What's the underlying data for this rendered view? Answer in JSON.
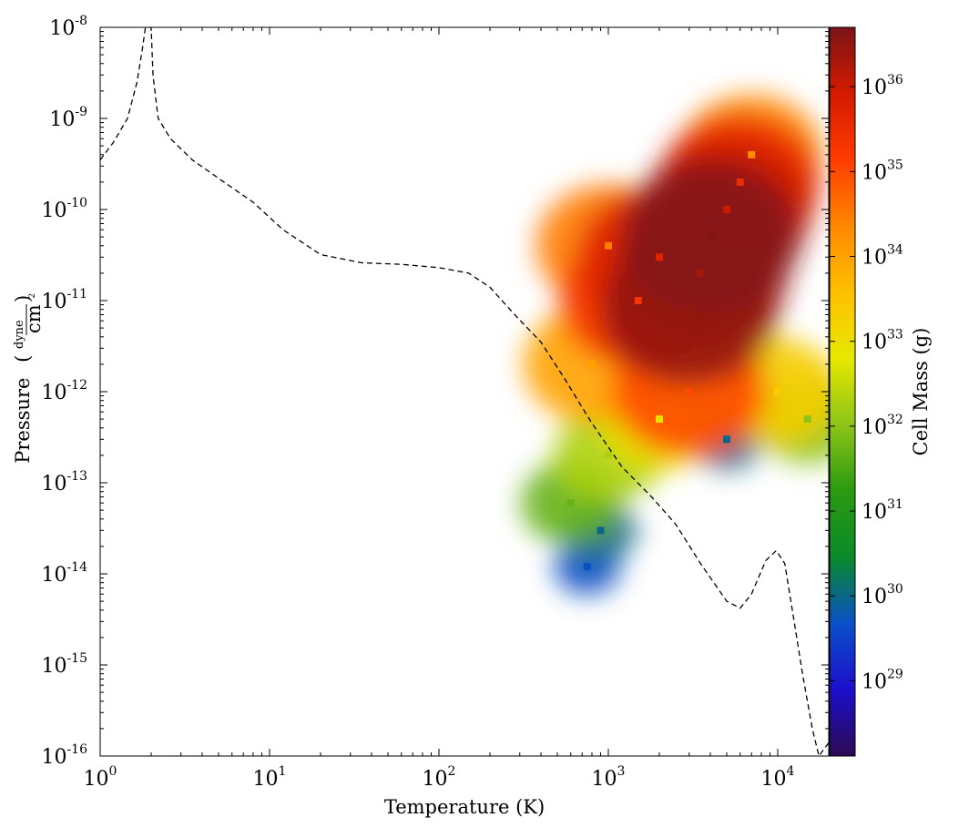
{
  "chart_data": {
    "type": "heatmap",
    "title": "",
    "xlabel": "Temperature  (K)",
    "ylabel_text": "Pressure",
    "ylabel_unit_numerator": "dyne",
    "ylabel_unit_denominator": "cm",
    "ylabel_unit_denominator_exponent": "2",
    "colorbar_label": "Cell Mass  (g)",
    "x_scale": "log",
    "y_scale": "log",
    "xlim": [
      1,
      20000
    ],
    "ylim": [
      1e-16,
      1e-08
    ],
    "x_ticks": [
      {
        "value": 1,
        "base": "10",
        "exp": "0"
      },
      {
        "value": 10,
        "base": "10",
        "exp": "1"
      },
      {
        "value": 100,
        "base": "10",
        "exp": "2"
      },
      {
        "value": 1000,
        "base": "10",
        "exp": "3"
      },
      {
        "value": 10000,
        "base": "10",
        "exp": "4"
      }
    ],
    "y_ticks": [
      {
        "value": 1e-08,
        "base": "10",
        "exp": "-8"
      },
      {
        "value": 1e-09,
        "base": "10",
        "exp": "-9"
      },
      {
        "value": 1e-10,
        "base": "10",
        "exp": "-10"
      },
      {
        "value": 1e-11,
        "base": "10",
        "exp": "-11"
      },
      {
        "value": 1e-12,
        "base": "10",
        "exp": "-12"
      },
      {
        "value": 1e-13,
        "base": "10",
        "exp": "-13"
      },
      {
        "value": 1e-14,
        "base": "10",
        "exp": "-14"
      },
      {
        "value": 1e-15,
        "base": "10",
        "exp": "-15"
      },
      {
        "value": 1e-16,
        "base": "10",
        "exp": "-16"
      }
    ],
    "colorbar_scale": "log",
    "colorbar_range": [
      1.3e+28,
      5e+36
    ],
    "colorbar_ticks": [
      {
        "value": 1e+29,
        "base": "10",
        "exp": "29"
      },
      {
        "value": 1e+30,
        "base": "10",
        "exp": "30"
      },
      {
        "value": 1e+31,
        "base": "10",
        "exp": "31"
      },
      {
        "value": 1e+32,
        "base": "10",
        "exp": "32"
      },
      {
        "value": 1e+33,
        "base": "10",
        "exp": "33"
      },
      {
        "value": 1e+34,
        "base": "10",
        "exp": "34"
      },
      {
        "value": 1e+35,
        "base": "10",
        "exp": "35"
      },
      {
        "value": 1e+36,
        "base": "10",
        "exp": "36"
      }
    ],
    "colormap": [
      "#2d0a52",
      "#1c0ecc",
      "#0a50c8",
      "#0a8a2a",
      "#2a9a10",
      "#8dc418",
      "#e6e800",
      "#ffc000",
      "#ff8800",
      "#ff3c00",
      "#d41a00",
      "#7a1418"
    ],
    "heatmap_description_values": {
      "peak_mass_g": 5e+36,
      "peak_temperature_K": 4000,
      "peak_pressure": 5e-11
    },
    "heatmap_cells": [
      {
        "T": 4000,
        "P": 5e-11,
        "mass": 4e+36
      },
      {
        "T": 3000,
        "P": 8e-12,
        "mass": 3e+36
      },
      {
        "T": 3500,
        "P": 2e-11,
        "mass": 2e+36
      },
      {
        "T": 5000,
        "P": 1e-10,
        "mass": 1e+36
      },
      {
        "T": 2000,
        "P": 3e-11,
        "mass": 5e+35
      },
      {
        "T": 6000,
        "P": 2e-10,
        "mass": 3e+35
      },
      {
        "T": 1500,
        "P": 1e-11,
        "mass": 2e+35
      },
      {
        "T": 3000,
        "P": 1e-12,
        "mass": 1e+35
      },
      {
        "T": 1000,
        "P": 4e-11,
        "mass": 3e+34
      },
      {
        "T": 7000,
        "P": 4e-10,
        "mass": 2e+34
      },
      {
        "T": 800,
        "P": 2e-12,
        "mass": 1e+34
      },
      {
        "T": 2000,
        "P": 5e-13,
        "mass": 1e+33
      },
      {
        "T": 10000,
        "P": 1e-12,
        "mass": 2e+33
      },
      {
        "T": 1000,
        "P": 2e-13,
        "mass": 2e+32
      },
      {
        "T": 15000,
        "P": 5e-13,
        "mass": 1e+32
      },
      {
        "T": 600,
        "P": 6e-14,
        "mass": 5e+31
      },
      {
        "T": 900,
        "P": 3e-14,
        "mass": 1e+30
      },
      {
        "T": 750,
        "P": 1.2e-14,
        "mass": 5e+29
      },
      {
        "T": 5000,
        "P": 3e-13,
        "mass": 1e+30
      }
    ],
    "series": [
      {
        "style": "dashed",
        "color": "#000000",
        "x": [
          1,
          1.2,
          1.45,
          1.65,
          1.78,
          1.85,
          2.0,
          2.05,
          2.2,
          2.6,
          3.5,
          5,
          8,
          12,
          20,
          35,
          60,
          100,
          150,
          200,
          280,
          400,
          550,
          800,
          1200,
          1800,
          2500,
          3500,
          5000,
          6000,
          7000,
          8500,
          9800,
          11000,
          12500,
          14000,
          16000,
          17500,
          20000
        ],
        "y": [
          3.5e-10,
          5.5e-10,
          1e-09,
          2.5e-09,
          6e-09,
          1e-08,
          1e-08,
          3e-09,
          1e-09,
          6e-10,
          3.5e-10,
          2.2e-10,
          1.2e-10,
          6e-11,
          3.2e-11,
          2.6e-11,
          2.5e-11,
          2.3e-11,
          2e-11,
          1.4e-11,
          7e-12,
          3.5e-12,
          1.4e-12,
          4.5e-13,
          1.5e-13,
          7e-14,
          3.5e-14,
          1.3e-14,
          5e-15,
          4.2e-15,
          6e-15,
          1.4e-14,
          1.8e-14,
          1.3e-14,
          3e-15,
          8e-16,
          2e-16,
          1e-16,
          1.4e-16
        ]
      }
    ]
  }
}
